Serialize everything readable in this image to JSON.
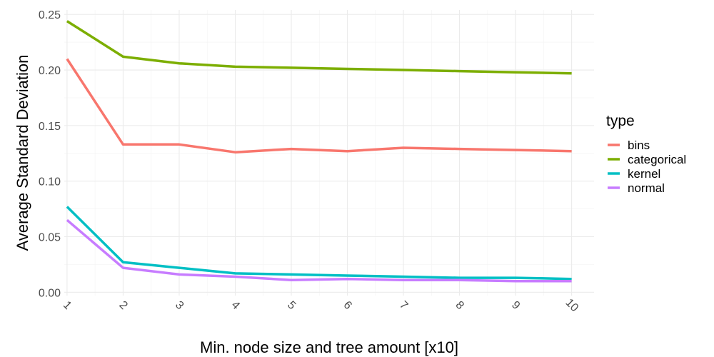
{
  "chart_data": {
    "type": "line",
    "title": "",
    "xlabel": "Min. node size and tree amount [x10]",
    "ylabel": "Average Standard Deviation",
    "x": [
      1,
      2,
      3,
      4,
      5,
      6,
      7,
      8,
      9,
      10
    ],
    "x_tick_labels": [
      "1",
      "2",
      "3",
      "4",
      "5",
      "6",
      "7",
      "8",
      "9",
      "10"
    ],
    "xlim": [
      0.95,
      10.4
    ],
    "ylim": [
      -0.003,
      0.254
    ],
    "y_ticks": [
      0.0,
      0.05,
      0.1,
      0.15,
      0.2,
      0.25
    ],
    "y_tick_labels": [
      "0.00",
      "0.05",
      "0.10",
      "0.15",
      "0.20",
      "0.25"
    ],
    "grid": true,
    "legend": {
      "title": "type",
      "position": "right"
    },
    "series": [
      {
        "name": "bins",
        "color": "#F8766D",
        "values": [
          0.21,
          0.133,
          0.133,
          0.126,
          0.129,
          0.127,
          0.13,
          0.129,
          0.128,
          0.127
        ]
      },
      {
        "name": "categorical",
        "color": "#7CAE00",
        "values": [
          0.244,
          0.212,
          0.206,
          0.203,
          0.202,
          0.201,
          0.2,
          0.199,
          0.198,
          0.197
        ]
      },
      {
        "name": "kernel",
        "color": "#00BFC4",
        "values": [
          0.077,
          0.027,
          0.022,
          0.017,
          0.016,
          0.015,
          0.014,
          0.013,
          0.013,
          0.012
        ]
      },
      {
        "name": "normal",
        "color": "#C77CFF",
        "values": [
          0.065,
          0.022,
          0.016,
          0.014,
          0.011,
          0.012,
          0.011,
          0.011,
          0.01,
          0.01
        ]
      }
    ]
  }
}
